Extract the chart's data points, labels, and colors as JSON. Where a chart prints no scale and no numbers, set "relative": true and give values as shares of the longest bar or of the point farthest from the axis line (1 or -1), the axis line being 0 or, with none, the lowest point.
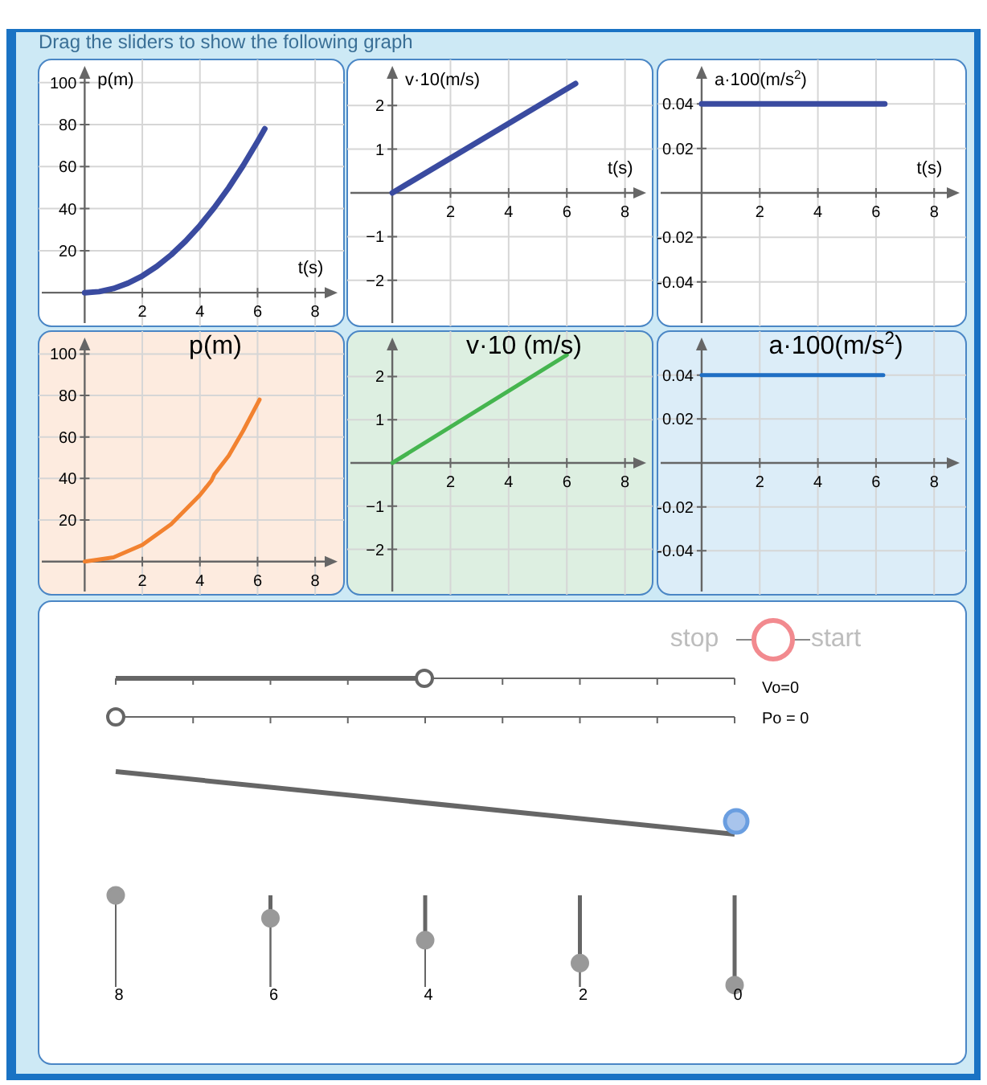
{
  "chart_data": [
    {
      "type": "line",
      "title": "Drag the sliders to show the following graph",
      "xlabel": "t(s)",
      "ylabel": "p(m)",
      "x": [
        0,
        0.5,
        1,
        1.5,
        2,
        2.5,
        3,
        3.5,
        4,
        4.5,
        5,
        5.5,
        6,
        6.25
      ],
      "series": [
        {
          "color": "#3a4ba0",
          "values": [
            0,
            0.5,
            2,
            4.5,
            8,
            12.5,
            18,
            24.5,
            32,
            40.5,
            50,
            60.5,
            72,
            78
          ]
        }
      ],
      "xlim": [
        -1.6,
        9
      ],
      "ylim": [
        -16,
        111
      ],
      "xticks": [
        2,
        4,
        6,
        8
      ],
      "yticks": [
        20,
        40,
        60,
        80,
        100
      ],
      "grid": true
    },
    {
      "type": "line",
      "xlabel": "t(s)",
      "ylabel": "v·10(m/s)",
      "x": [
        0,
        6.3
      ],
      "series": [
        {
          "color": "#3a4ba0",
          "values": [
            0,
            2.5
          ]
        }
      ],
      "xlim": [
        -1.55,
        8.95
      ],
      "ylim": [
        -3.05,
        3.05
      ],
      "xticks": [
        2,
        4,
        6,
        8
      ],
      "yticks": [
        {
          "value": -2,
          "label": "−2"
        },
        {
          "value": -1,
          "label": "−1"
        },
        1,
        2
      ],
      "grid": true
    },
    {
      "type": "line",
      "xlabel": "t(s)",
      "ylabel": "a·100(m/s$^{2}$)",
      "x": [
        0,
        6.3
      ],
      "series": [
        {
          "color": "#3a4ba0",
          "values": [
            0.04,
            0.04
          ]
        }
      ],
      "xlim": [
        -1.52,
        9.1
      ],
      "ylim": [
        -0.06,
        0.06
      ],
      "xticks": [
        2,
        4,
        6,
        8
      ],
      "yticks": [
        {
          "value": -0.04,
          "label": "-0.04"
        },
        {
          "value": -0.02,
          "label": "-0.02"
        },
        {
          "value": 0.02,
          "label": "0.02"
        },
        {
          "value": 0.04,
          "label": "0.04"
        }
      ],
      "grid": true
    },
    {
      "type": "line",
      "title": "p(m)",
      "x": [
        0,
        1,
        2,
        3,
        4,
        4.4,
        4.5,
        5,
        5.5,
        6.07
      ],
      "series": [
        {
          "color": "#f28230",
          "values": [
            0,
            2,
            8,
            18,
            32,
            39,
            42,
            51,
            63,
            78
          ]
        }
      ],
      "xlim": [
        -1.6,
        9
      ],
      "ylim": [
        -16,
        111
      ],
      "xticks": [
        2,
        4,
        6,
        8
      ],
      "yticks": [
        20,
        40,
        60,
        80,
        100
      ],
      "grid": true
    },
    {
      "type": "line",
      "title": "v·10 (m/s)",
      "x": [
        0,
        6
      ],
      "series": [
        {
          "color": "#45b54f",
          "values": [
            0,
            2.5
          ]
        }
      ],
      "xlim": [
        -1.55,
        8.95
      ],
      "ylim": [
        -3.05,
        3.05
      ],
      "xticks": [
        2,
        4,
        6,
        8
      ],
      "yticks": [
        {
          "value": -2,
          "label": "−2"
        },
        {
          "value": -1,
          "label": "−1"
        },
        1,
        2
      ],
      "grid": true
    },
    {
      "type": "line",
      "title": "a·100(m/s$^{2}$)",
      "x": [
        0,
        6.25
      ],
      "series": [
        {
          "color": "#1f6fc4",
          "values": [
            0.04,
            0.04
          ]
        }
      ],
      "xlim": [
        -1.52,
        9.1
      ],
      "ylim": [
        -0.06,
        0.06
      ],
      "xticks": [
        2,
        4,
        6,
        8
      ],
      "yticks": [
        {
          "value": -0.04,
          "label": "-0.04"
        },
        {
          "value": -0.02,
          "label": "-0.02"
        },
        {
          "value": 0.02,
          "label": "0.02"
        },
        {
          "value": 0.04,
          "label": "0.04"
        }
      ],
      "grid": true
    },
    {
      "type": "lollipop",
      "relative": true,
      "categories": [
        "8",
        "6",
        "4",
        "2",
        "0"
      ],
      "values": [
        1,
        0.75,
        0.51,
        0.26,
        0.02
      ],
      "color": "#999999",
      "grid": "x",
      "annotations": [
        "stop",
        "start",
        "Vo=0",
        "Po = 0"
      ]
    }
  ]
}
